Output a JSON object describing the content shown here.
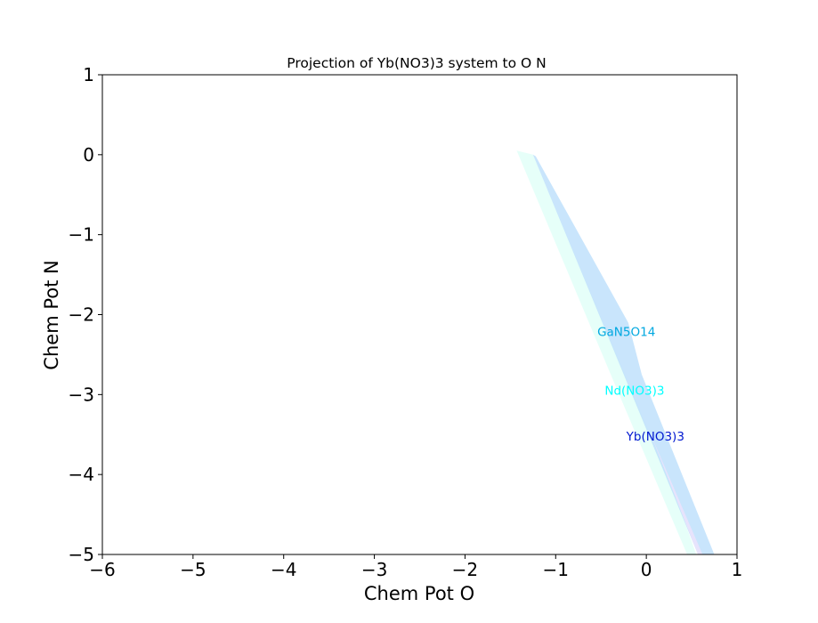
{
  "chart_data": {
    "type": "area",
    "title": "Projection of Yb(NO3)3 system to O N",
    "xlabel": "Chem Pot O",
    "ylabel": "Chem Pot N",
    "xlim": [
      -6,
      1
    ],
    "ylim": [
      -5,
      1
    ],
    "xticks": [
      -6,
      -5,
      -4,
      -3,
      -2,
      -1,
      0,
      1
    ],
    "yticks": [
      1,
      0,
      -1,
      -2,
      -3,
      -4,
      -5
    ],
    "xtick_labels": [
      "−6",
      "−5",
      "−4",
      "−3",
      "−2",
      "−1",
      "0",
      "1"
    ],
    "ytick_labels": [
      "1",
      "0",
      "−1",
      "−2",
      "−3",
      "−4",
      "−5"
    ],
    "grid": false,
    "regions": [
      {
        "name": "Nd(NO3)3",
        "color": "#00ffff",
        "fill": "#e2fff8",
        "polygon": [
          [
            -1.43,
            0.05
          ],
          [
            -1.25,
            0.0
          ],
          [
            0.3,
            -4.2
          ],
          [
            0.55,
            -5.0
          ],
          [
            0.45,
            -5.0
          ],
          [
            -0.3,
            -3.0
          ]
        ],
        "label_pos": [
          -0.13,
          -2.96
        ]
      },
      {
        "name": "GaN5O14",
        "color": "#00a8e0",
        "fill": "#bfe0fb",
        "polygon": [
          [
            -1.25,
            0.0
          ],
          [
            -1.22,
            -0.02
          ],
          [
            -0.2,
            -2.1
          ],
          [
            -0.05,
            -2.75
          ],
          [
            0.75,
            -5.0
          ],
          [
            0.57,
            -5.0
          ]
        ],
        "label_pos": [
          -0.22,
          -2.22
        ]
      },
      {
        "name": "Yb(NO3)3",
        "color": "#0018d0",
        "fill": "#ece3fb",
        "polygon": [
          [
            0.05,
            -3.5
          ],
          [
            0.57,
            -5.0
          ],
          [
            0.62,
            -5.0
          ]
        ],
        "label_pos": [
          0.1,
          -3.53
        ]
      }
    ]
  }
}
